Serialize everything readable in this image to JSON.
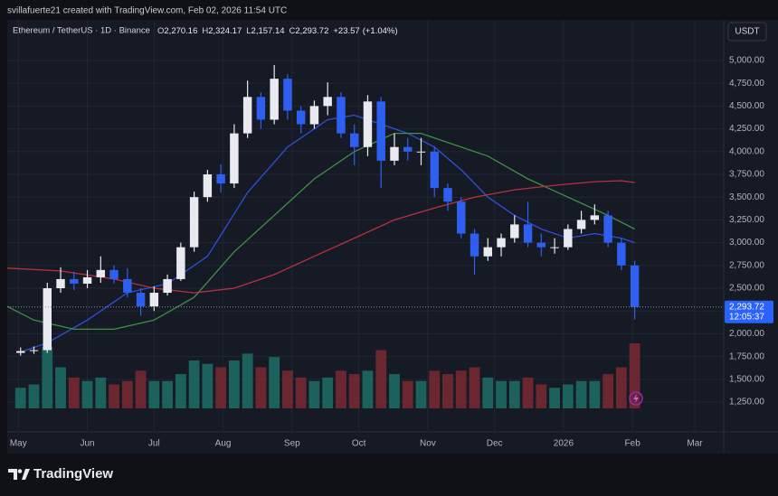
{
  "header": {
    "attribution": "svillafuerte21 created with TradingView.com, Feb 02, 2026 11:54 UTC"
  },
  "footer": {
    "brand": "TradingView"
  },
  "chart_data": {
    "type": "candlestick",
    "title": "Ethereum / TetherUS · 1D · Binance",
    "ohlc_legend": [
      {
        "key": "O",
        "value": 2270.16,
        "label": "2,270.16"
      },
      {
        "key": "H",
        "value": 2324.17,
        "label": "2,324.17"
      },
      {
        "key": "L",
        "value": 2157.14,
        "label": "2,157.14"
      },
      {
        "key": "C",
        "value": 2293.72,
        "label": "2,293.72"
      }
    ],
    "change": {
      "value": 23.57,
      "label": "+23.57"
    },
    "change_pct": {
      "value": 1.04,
      "label": "(+1.04%)"
    },
    "currency": "USDT",
    "last_price": {
      "value": 2293.72,
      "label": "2,293.72"
    },
    "countdown": "12:05:37",
    "up_color": "#e8eaf0",
    "down_color": "#2f5ff0",
    "volume_up_color": "#1f6e66",
    "volume_down_color": "#7a2a33",
    "grid": true,
    "xlim": [
      -5,
      317
    ],
    "ylim": [
      923,
      5446
    ],
    "xticks": [
      {
        "value": 0,
        "label": "May"
      },
      {
        "value": 31,
        "label": "Jun"
      },
      {
        "value": 61,
        "label": "Jul"
      },
      {
        "value": 92,
        "label": "Aug"
      },
      {
        "value": 123,
        "label": "Sep"
      },
      {
        "value": 153,
        "label": "Oct"
      },
      {
        "value": 184,
        "label": "Nov"
      },
      {
        "value": 214,
        "label": "Dec"
      },
      {
        "value": 245,
        "label": "2026"
      },
      {
        "value": 276,
        "label": "Feb"
      },
      {
        "value": 304,
        "label": "Mar"
      }
    ],
    "yticks": [
      {
        "value": 1250,
        "label": "1,250.00"
      },
      {
        "value": 1500,
        "label": "1,500.00"
      },
      {
        "value": 1750,
        "label": "1,750.00"
      },
      {
        "value": 2000,
        "label": "2,000.00"
      },
      {
        "value": 2250,
        "label": "2,250.00"
      },
      {
        "value": 2500,
        "label": "2,500.00"
      },
      {
        "value": 2750,
        "label": "2,750.00"
      },
      {
        "value": 3000,
        "label": "3,000.00"
      },
      {
        "value": 3250,
        "label": "3,250.00"
      },
      {
        "value": 3500,
        "label": "3,500.00"
      },
      {
        "value": 3750,
        "label": "3,750.00"
      },
      {
        "value": 4000,
        "label": "4,000.00"
      },
      {
        "value": 4250,
        "label": "4,250.00"
      },
      {
        "value": 4500,
        "label": "4,500.00"
      },
      {
        "value": 4750,
        "label": "4,750.00"
      },
      {
        "value": 5000,
        "label": "5,000.00"
      }
    ],
    "candles": {
      "x": [
        1,
        7,
        13,
        19,
        25,
        31,
        37,
        43,
        49,
        55,
        61,
        67,
        73,
        79,
        85,
        91,
        97,
        103,
        109,
        115,
        121,
        127,
        133,
        139,
        145,
        151,
        157,
        163,
        169,
        175,
        181,
        187,
        193,
        199,
        205,
        211,
        217,
        223,
        229,
        235,
        241,
        247,
        253,
        259,
        265,
        271,
        277
      ],
      "open": [
        1790,
        1810,
        1820,
        2500,
        2600,
        2550,
        2620,
        2700,
        2600,
        2450,
        2300,
        2450,
        2600,
        2950,
        3500,
        3750,
        3650,
        4200,
        4600,
        4350,
        4800,
        4450,
        4300,
        4500,
        4600,
        4200,
        4050,
        4550,
        3900,
        4050,
        4000,
        4000,
        3600,
        3450,
        3100,
        2850,
        2950,
        3050,
        3200,
        3000,
        2950,
        2950,
        3150,
        3250,
        3300,
        3000,
        2750
      ],
      "high": [
        1850,
        1860,
        2560,
        2730,
        2680,
        2700,
        2850,
        2750,
        2720,
        2500,
        2520,
        2650,
        3000,
        3560,
        3800,
        3860,
        4300,
        4780,
        4650,
        4950,
        4850,
        4500,
        4560,
        4760,
        4650,
        4300,
        4620,
        4600,
        4200,
        4150,
        4150,
        4050,
        3650,
        3500,
        3150,
        3050,
        3100,
        3300,
        3450,
        3100,
        3050,
        3200,
        3350,
        3420,
        3350,
        3050,
        2800
      ],
      "low": [
        1760,
        1780,
        1790,
        2450,
        2480,
        2500,
        2560,
        2550,
        2400,
        2200,
        2250,
        2420,
        2580,
        2900,
        3450,
        3550,
        3600,
        4150,
        4250,
        4300,
        4350,
        4200,
        4250,
        4400,
        4150,
        3850,
        3950,
        3600,
        3850,
        3900,
        3850,
        3500,
        3350,
        3050,
        2650,
        2800,
        2850,
        3000,
        2950,
        2850,
        2880,
        2920,
        3100,
        3200,
        2950,
        2700,
        2157.14
      ],
      "close": [
        1810,
        1820,
        2500,
        2600,
        2550,
        2620,
        2700,
        2600,
        2450,
        2300,
        2450,
        2600,
        2950,
        3500,
        3750,
        3650,
        4200,
        4600,
        4350,
        4800,
        4450,
        4300,
        4500,
        4600,
        4200,
        4050,
        4550,
        3900,
        4050,
        4000,
        4000,
        3600,
        3450,
        3100,
        2850,
        2950,
        3050,
        3200,
        3000,
        2950,
        2950,
        3150,
        3250,
        3300,
        3000,
        2750,
        2293.72
      ],
      "volume": [
        30,
        35,
        90,
        60,
        45,
        40,
        45,
        35,
        40,
        55,
        40,
        40,
        50,
        70,
        65,
        60,
        70,
        80,
        60,
        75,
        55,
        45,
        40,
        45,
        55,
        50,
        55,
        85,
        50,
        40,
        40,
        55,
        50,
        55,
        60,
        45,
        40,
        40,
        45,
        35,
        30,
        35,
        40,
        40,
        50,
        60,
        95
      ]
    },
    "moving_averages": [
      {
        "color": "#2f4fd8",
        "x": [
          1,
          13,
          31,
          49,
          67,
          85,
          103,
          121,
          139,
          151,
          163,
          175,
          187,
          199,
          211,
          223,
          235,
          247,
          259,
          271,
          277
        ],
        "values": [
          1800,
          1900,
          2150,
          2450,
          2550,
          2850,
          3550,
          4050,
          4350,
          4400,
          4300,
          4200,
          4050,
          3800,
          3500,
          3300,
          3150,
          3050,
          3100,
          3050,
          3000
        ]
      },
      {
        "color": "#3f8f45",
        "x": [
          -5,
          7,
          25,
          43,
          61,
          79,
          97,
          115,
          133,
          151,
          169,
          181,
          193,
          211,
          229,
          247,
          265,
          277
        ],
        "values": [
          2300,
          2150,
          2050,
          2050,
          2150,
          2400,
          2900,
          3300,
          3700,
          4000,
          4200,
          4200,
          4100,
          3950,
          3700,
          3500,
          3300,
          3150
        ]
      },
      {
        "color": "#b8323e",
        "x": [
          -5,
          19,
          43,
          61,
          79,
          97,
          115,
          133,
          151,
          169,
          187,
          205,
          223,
          241,
          259,
          271,
          277
        ],
        "values": [
          2720,
          2690,
          2600,
          2500,
          2450,
          2500,
          2650,
          2850,
          3050,
          3250,
          3380,
          3500,
          3580,
          3630,
          3670,
          3680,
          3660
        ]
      }
    ]
  }
}
